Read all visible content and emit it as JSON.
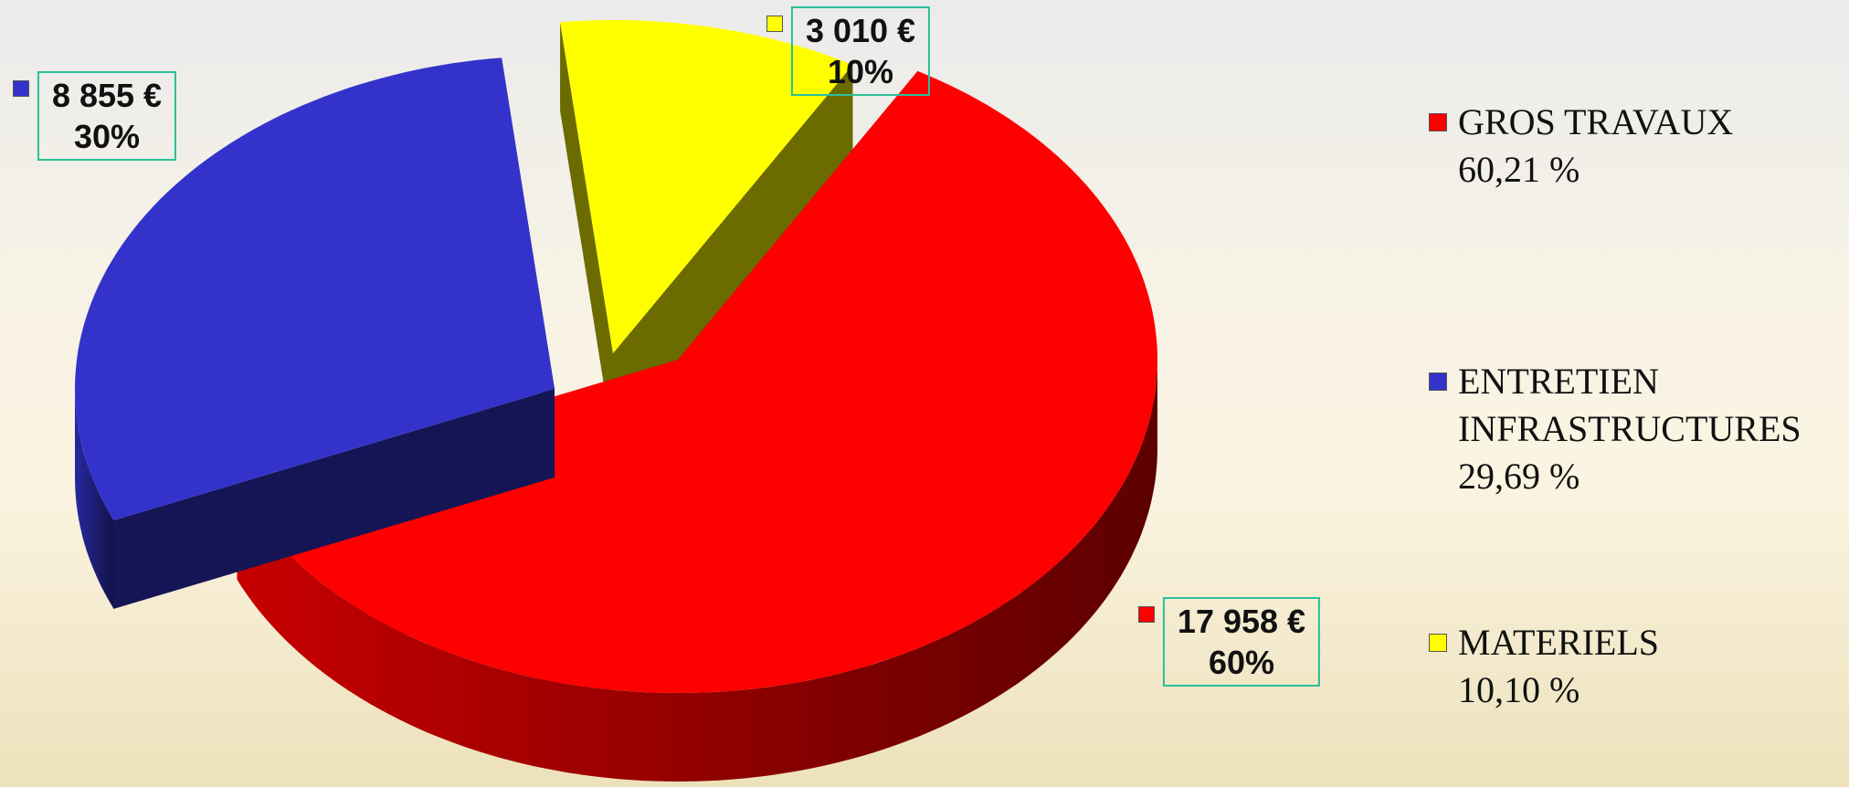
{
  "chart_data": {
    "type": "pie",
    "categories": [
      "GROS TRAVAUX",
      "ENTRETIEN INFRASTRUCTURES",
      "MATERIELS"
    ],
    "values": [
      17958,
      8855,
      3010
    ],
    "value_labels": [
      "17 958 €",
      "8 855 €",
      "3 010 €"
    ],
    "percents": [
      60,
      30,
      10
    ],
    "percent_labels": [
      "60%",
      "30%",
      "10%"
    ],
    "legend_shares": [
      60.21,
      29.69,
      10.1
    ],
    "legend_share_labels": [
      "60,21 %",
      "29,69 %",
      "10,10 %"
    ],
    "colors": [
      "#ff0000",
      "#3333cc",
      "#ffff00"
    ],
    "legend": "right"
  }
}
